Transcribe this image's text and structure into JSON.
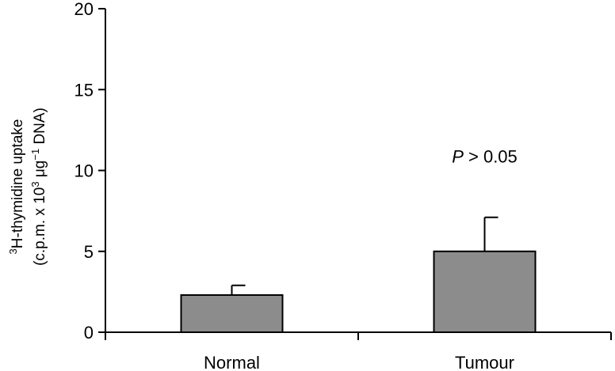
{
  "chart_data": {
    "type": "bar",
    "categories": [
      "Normal",
      "Tumour"
    ],
    "series": [
      {
        "values": [
          2.3,
          5.0
        ],
        "error_upper": [
          0.6,
          2.1
        ]
      }
    ],
    "ylabel_line1_sup": "3",
    "ylabel_line1": "H-thymidine uptake",
    "ylabel_line2_a": "(c.p.m. x 10",
    "ylabel_line2_sup1": "3",
    "ylabel_line2_b": " μg",
    "ylabel_line2_sup2": "−1",
    "ylabel_line2_c": " DNA)",
    "ylim": [
      0,
      20
    ],
    "yticks": [
      "0",
      "5",
      "10",
      "15",
      "20"
    ],
    "annotation": {
      "italic": "P",
      "text": " > 0.05",
      "category": "Tumour",
      "y": 10.5
    },
    "grid": false,
    "legend": "none",
    "colors": {
      "bar_fill": "#8c8c8c",
      "bar_stroke": "#000000",
      "axis": "#000000"
    }
  }
}
